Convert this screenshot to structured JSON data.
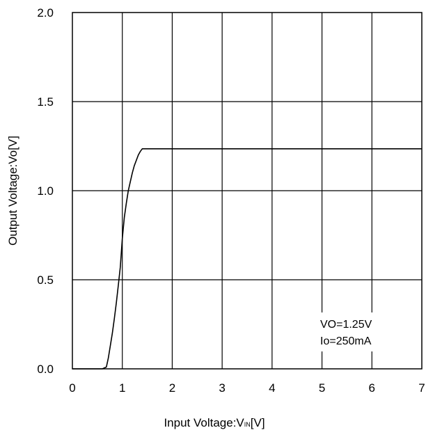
{
  "chart_data": {
    "type": "line",
    "title": "",
    "xlabel": {
      "prefix": "Input Voltage:V",
      "subscript": "IN",
      "suffix": "[V]"
    },
    "ylabel": "Output Voltage:Vo[V]",
    "xlim": [
      0,
      7
    ],
    "ylim": [
      0,
      2.0
    ],
    "x_ticks": [
      "0",
      "1",
      "2",
      "3",
      "4",
      "5",
      "6",
      "7"
    ],
    "y_ticks": [
      "0.0",
      "0.5",
      "1.0",
      "1.5",
      "2.0"
    ],
    "grid": true,
    "annotations": [
      "VO=1.25V",
      "Io=250mA"
    ],
    "series": [
      {
        "x": [
          0.0,
          0.2,
          0.4,
          0.6,
          0.68,
          0.72,
          0.76,
          0.8,
          0.84,
          0.88,
          0.92,
          0.96,
          1.0,
          1.04,
          1.08,
          1.12,
          1.16,
          1.2,
          1.24,
          1.28,
          1.32,
          1.36,
          1.4,
          1.45,
          1.5,
          2.0,
          3.0,
          4.0,
          5.0,
          6.0,
          7.0
        ],
        "values": [
          0.0,
          0.0,
          0.0,
          0.0,
          0.01,
          0.06,
          0.13,
          0.2,
          0.28,
          0.37,
          0.47,
          0.57,
          0.73,
          0.85,
          0.93,
          1.0,
          1.05,
          1.1,
          1.14,
          1.17,
          1.2,
          1.22,
          1.235,
          1.235,
          1.235,
          1.235,
          1.235,
          1.235,
          1.235,
          1.235,
          1.235
        ]
      }
    ]
  }
}
